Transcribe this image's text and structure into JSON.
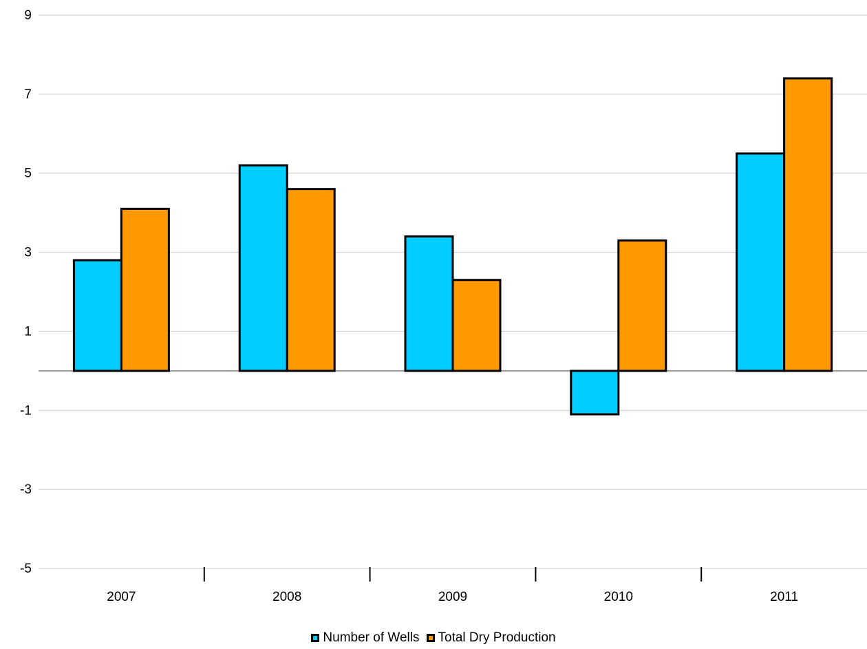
{
  "chart_data": {
    "type": "bar",
    "categories": [
      "2007",
      "2008",
      "2009",
      "2010",
      "2011"
    ],
    "series": [
      {
        "name": "Number of Wells",
        "color": "#00CCFF",
        "values": [
          2.8,
          5.2,
          3.4,
          -1.1,
          5.5
        ]
      },
      {
        "name": "Total Dry Production",
        "color": "#FF9900",
        "values": [
          4.1,
          4.6,
          2.3,
          3.3,
          7.4
        ]
      }
    ],
    "yticks": [
      9,
      7,
      5,
      3,
      1,
      -1,
      -3,
      -5
    ],
    "ylim": [
      -5,
      9
    ],
    "grid": true,
    "legend_position": "bottom-center",
    "title": "",
    "xlabel": "",
    "ylabel": ""
  }
}
